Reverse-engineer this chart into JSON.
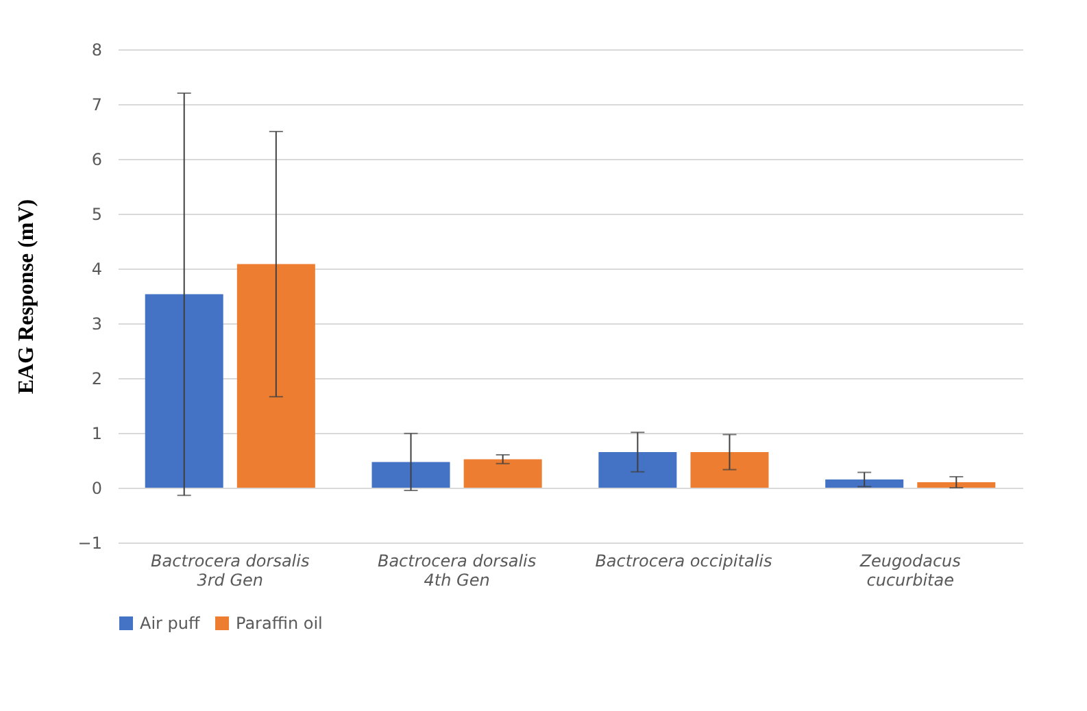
{
  "chart_data": {
    "type": "bar",
    "ylabel": "EAG Response (mV)",
    "categories": [
      "Bactrocera dorsalis\n3rd Gen",
      "Bactrocera dorsalis\n4th Gen",
      "Bactrocera occipitalis",
      "Zeugodacus\ncucurbitae"
    ],
    "series": [
      {
        "name": "Air puff",
        "color": "#4472c4",
        "values": [
          3.53,
          0.47,
          0.65,
          0.15
        ],
        "errors": [
          3.67,
          0.52,
          0.36,
          0.13
        ]
      },
      {
        "name": "Paraffin oil",
        "color": "#ed7d31",
        "values": [
          4.08,
          0.52,
          0.65,
          0.1
        ],
        "errors": [
          2.42,
          0.08,
          0.32,
          0.1
        ]
      }
    ],
    "ylim": [
      -1,
      8
    ],
    "yticks": [
      -1,
      0,
      1,
      2,
      3,
      4,
      5,
      6,
      7,
      8
    ],
    "grid": "y",
    "legend": "bottom"
  }
}
